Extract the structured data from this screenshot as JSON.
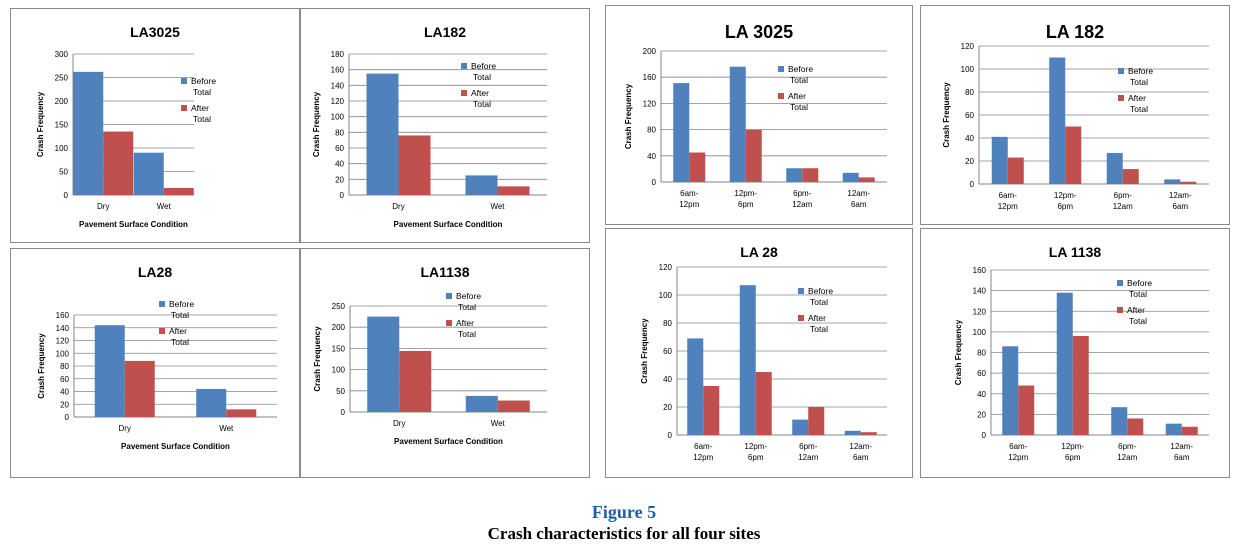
{
  "figure": {
    "number": "Figure 5",
    "caption": "Crash characteristics for all four sites"
  },
  "colors": {
    "before": "#4f81bd",
    "after": "#c0504d",
    "grid": "#868686",
    "axis": "#868686"
  },
  "chart_data": [
    {
      "type": "bar",
      "title": "LA3025",
      "xlabel": "Pavement Surface Condition",
      "ylabel": "Crash Frequency",
      "categories": [
        "Dry",
        "Wet"
      ],
      "yticks": [
        "0",
        "50",
        "100",
        "150",
        "200",
        "250",
        "300"
      ],
      "ylim": [
        0,
        300
      ],
      "series": [
        {
          "name": "Before Total",
          "name_lines": [
            "Before",
            "Total"
          ],
          "values": [
            262,
            90
          ]
        },
        {
          "name": "After Total",
          "name_lines": [
            "After",
            "Total"
          ],
          "values": [
            135,
            15
          ]
        }
      ],
      "grid": true,
      "legend": "right"
    },
    {
      "type": "bar",
      "title": "LA182",
      "xlabel": "Pavement Surface Condition",
      "ylabel": "Crash Frequency",
      "categories": [
        "Dry",
        "Wet"
      ],
      "yticks": [
        "0",
        "20",
        "40",
        "60",
        "80",
        "100",
        "120",
        "140",
        "160",
        "180"
      ],
      "ylim": [
        0,
        180
      ],
      "series": [
        {
          "name": "Before Total",
          "name_lines": [
            "Before",
            "Total"
          ],
          "values": [
            155,
            25
          ]
        },
        {
          "name": "After Total",
          "name_lines": [
            "After",
            "Total"
          ],
          "values": [
            76,
            11
          ]
        }
      ],
      "grid": true,
      "legend": "right"
    },
    {
      "type": "bar",
      "title": "LA 3025",
      "xlabel": "",
      "ylabel": "Crash Frequency",
      "categories": [
        "6am-\n12pm",
        "12pm-\n6pm",
        "6pm-\n12am",
        "12am-\n6am"
      ],
      "yticks": [
        "0",
        "40",
        "80",
        "120",
        "160",
        "200"
      ],
      "ylim": [
        0,
        200
      ],
      "series": [
        {
          "name": "Before Total",
          "name_lines": [
            "Before",
            "Total"
          ],
          "values": [
            151,
            176,
            21,
            14
          ]
        },
        {
          "name": "After Total",
          "name_lines": [
            "After",
            "Total"
          ],
          "values": [
            45,
            80,
            21,
            7
          ]
        }
      ],
      "grid": true,
      "legend": "right"
    },
    {
      "type": "bar",
      "title": "LA 182",
      "xlabel": "",
      "ylabel": "Crash Frequency",
      "categories": [
        "6am-\n12pm",
        "12pm-\n6pm",
        "6pm-\n12am",
        "12am-\n6am"
      ],
      "yticks": [
        "0",
        "20",
        "40",
        "60",
        "80",
        "100",
        "120"
      ],
      "ylim": [
        0,
        120
      ],
      "series": [
        {
          "name": "Before Total",
          "name_lines": [
            "Before",
            "Total"
          ],
          "values": [
            41,
            110,
            27,
            4
          ]
        },
        {
          "name": "After Total",
          "name_lines": [
            "After",
            "Total"
          ],
          "values": [
            23,
            50,
            13,
            2
          ]
        }
      ],
      "grid": true,
      "legend": "right"
    },
    {
      "type": "bar",
      "title": "LA28",
      "xlabel": "Pavement Surface Condition",
      "ylabel": "Crash Frequency",
      "categories": [
        "Dry",
        "Wet"
      ],
      "yticks": [
        "0",
        "20",
        "40",
        "60",
        "80",
        "100",
        "120",
        "140",
        "160"
      ],
      "ylim": [
        0,
        160
      ],
      "series": [
        {
          "name": "Before Total",
          "name_lines": [
            "Before",
            "Total"
          ],
          "values": [
            144,
            44
          ]
        },
        {
          "name": "After Total",
          "name_lines": [
            "After",
            "Total"
          ],
          "values": [
            88,
            12
          ]
        }
      ],
      "grid": true,
      "legend": "right"
    },
    {
      "type": "bar",
      "title": "LA1138",
      "xlabel": "Pavement Surface Condition",
      "ylabel": "Crash Frequency",
      "categories": [
        "Dry",
        "Wet"
      ],
      "yticks": [
        "0",
        "50",
        "100",
        "150",
        "200",
        "250"
      ],
      "ylim": [
        0,
        250
      ],
      "series": [
        {
          "name": "Before Total",
          "name_lines": [
            "Before",
            "Total"
          ],
          "values": [
            225,
            38
          ]
        },
        {
          "name": "After Total",
          "name_lines": [
            "After",
            "Total"
          ],
          "values": [
            144,
            27
          ]
        }
      ],
      "grid": true,
      "legend": "right"
    },
    {
      "type": "bar",
      "title": "LA 28",
      "xlabel": "",
      "ylabel": "Crash Frequency",
      "categories": [
        "6am-\n12pm",
        "12pm-\n6pm",
        "6pm-\n12am",
        "12am-\n6am"
      ],
      "yticks": [
        "0",
        "20",
        "40",
        "60",
        "80",
        "100",
        "120"
      ],
      "ylim": [
        0,
        120
      ],
      "series": [
        {
          "name": "Before Total",
          "name_lines": [
            "Before",
            "Total"
          ],
          "values": [
            69,
            107,
            11,
            3
          ]
        },
        {
          "name": "After Total",
          "name_lines": [
            "After",
            "Total"
          ],
          "values": [
            35,
            45,
            20,
            2
          ]
        }
      ],
      "grid": true,
      "legend": "right"
    },
    {
      "type": "bar",
      "title": "LA 1138",
      "xlabel": "",
      "ylabel": "Crash Frequency",
      "categories": [
        "6am-\n12pm",
        "12pm-\n6pm",
        "6pm-\n12am",
        "12am-\n6am"
      ],
      "yticks": [
        "0",
        "20",
        "40",
        "60",
        "80",
        "100",
        "120",
        "140",
        "160"
      ],
      "ylim": [
        0,
        160
      ],
      "series": [
        {
          "name": "Before Total",
          "name_lines": [
            "Before",
            "Total"
          ],
          "values": [
            86,
            138,
            27,
            11
          ]
        },
        {
          "name": "After Total",
          "name_lines": [
            "After",
            "Total"
          ],
          "values": [
            48,
            96,
            16,
            8
          ]
        }
      ],
      "grid": true,
      "legend": "right"
    }
  ]
}
